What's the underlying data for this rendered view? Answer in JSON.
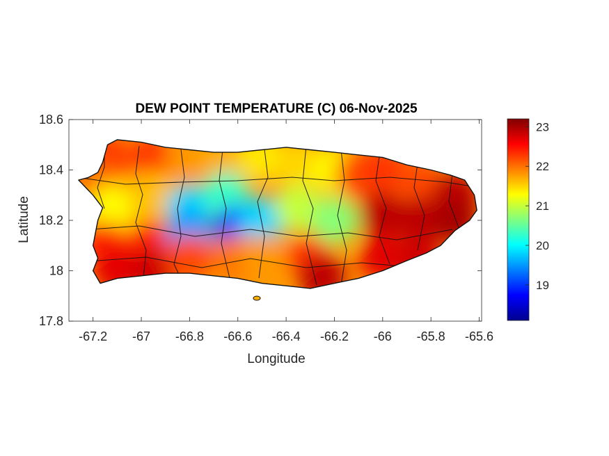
{
  "figure": {
    "title": "DEW POINT TEMPERATURE (C) 06-Nov-2025",
    "xlabel": "Longitude",
    "ylabel": "Latitude"
  },
  "axes": {
    "xlim": [
      -67.3,
      -65.59
    ],
    "ylim": [
      17.8,
      18.6
    ],
    "xticks": [
      -67.2,
      -67,
      -66.8,
      -66.6,
      -66.4,
      -66.2,
      -66,
      -65.8,
      -65.6
    ],
    "xtick_labels": [
      "-67.2",
      "-67",
      "-66.8",
      "-66.6",
      "-66.4",
      "-66.2",
      "-66",
      "-65.8",
      "-65.6"
    ],
    "yticks": [
      17.8,
      18,
      18.2,
      18.4,
      18.6
    ],
    "ytick_labels": [
      "17.8",
      "18",
      "18.2",
      "18.4",
      "18.6"
    ]
  },
  "colorbar": {
    "range": [
      18.1,
      23.2
    ],
    "ticks": [
      19,
      20,
      21,
      22,
      23
    ],
    "tick_labels": [
      "19",
      "20",
      "21",
      "22",
      "23"
    ],
    "colormap": "jet"
  },
  "chart_data": {
    "type": "heatmap",
    "title": "DEW POINT TEMPERATURE (C) 06-Nov-2025",
    "xlabel": "Longitude",
    "ylabel": "Latitude",
    "xlim": [
      -67.3,
      -65.59
    ],
    "ylim": [
      17.8,
      18.6
    ],
    "colorbar_range": [
      18.1,
      23.2
    ],
    "colormap": "jet",
    "grid": false,
    "region_outline": [
      [
        -67.22,
        18.37
      ],
      [
        -67.18,
        18.39
      ],
      [
        -67.16,
        18.43
      ],
      [
        -67.14,
        18.5
      ],
      [
        -67.1,
        18.52
      ],
      [
        -67.0,
        18.51
      ],
      [
        -66.9,
        18.49
      ],
      [
        -66.8,
        18.48
      ],
      [
        -66.7,
        18.47
      ],
      [
        -66.6,
        18.47
      ],
      [
        -66.5,
        18.48
      ],
      [
        -66.4,
        18.49
      ],
      [
        -66.3,
        18.48
      ],
      [
        -66.2,
        18.47
      ],
      [
        -66.1,
        18.46
      ],
      [
        -66.0,
        18.45
      ],
      [
        -65.9,
        18.42
      ],
      [
        -65.8,
        18.4
      ],
      [
        -65.72,
        18.38
      ],
      [
        -65.66,
        18.36
      ],
      [
        -65.62,
        18.3
      ],
      [
        -65.61,
        18.24
      ],
      [
        -65.64,
        18.2
      ],
      [
        -65.7,
        18.16
      ],
      [
        -65.76,
        18.1
      ],
      [
        -65.82,
        18.07
      ],
      [
        -65.9,
        18.04
      ],
      [
        -66.0,
        18.0
      ],
      [
        -66.1,
        17.97
      ],
      [
        -66.2,
        17.95
      ],
      [
        -66.3,
        17.93
      ],
      [
        -66.4,
        17.94
      ],
      [
        -66.5,
        17.95
      ],
      [
        -66.6,
        17.97
      ],
      [
        -66.7,
        17.98
      ],
      [
        -66.8,
        17.99
      ],
      [
        -66.9,
        17.99
      ],
      [
        -67.0,
        17.98
      ],
      [
        -67.1,
        17.97
      ],
      [
        -67.17,
        17.95
      ],
      [
        -67.2,
        18.0
      ],
      [
        -67.18,
        18.05
      ],
      [
        -67.2,
        18.1
      ],
      [
        -67.19,
        18.15
      ],
      [
        -67.18,
        18.2
      ],
      [
        -67.16,
        18.25
      ],
      [
        -67.2,
        18.3
      ],
      [
        -67.26,
        18.36
      ]
    ],
    "field_samples": [
      {
        "lon": -67.15,
        "lat": 18.45,
        "value": 22.3
      },
      {
        "lon": -67.2,
        "lat": 18.35,
        "value": 22.0
      },
      {
        "lon": -67.12,
        "lat": 18.25,
        "value": 21.3
      },
      {
        "lon": -67.15,
        "lat": 18.1,
        "value": 22.4
      },
      {
        "lon": -67.1,
        "lat": 18.0,
        "value": 22.7
      },
      {
        "lon": -66.95,
        "lat": 18.45,
        "value": 22.3
      },
      {
        "lon": -66.95,
        "lat": 18.3,
        "value": 21.6
      },
      {
        "lon": -66.95,
        "lat": 18.1,
        "value": 22.4
      },
      {
        "lon": -66.95,
        "lat": 18.0,
        "value": 22.8
      },
      {
        "lon": -66.8,
        "lat": 18.45,
        "value": 21.8
      },
      {
        "lon": -66.8,
        "lat": 18.25,
        "value": 19.8
      },
      {
        "lon": -66.8,
        "lat": 18.15,
        "value": 19.5
      },
      {
        "lon": -66.8,
        "lat": 18.05,
        "value": 22.2
      },
      {
        "lon": -66.65,
        "lat": 18.45,
        "value": 21.7
      },
      {
        "lon": -66.65,
        "lat": 18.3,
        "value": 20.3
      },
      {
        "lon": -66.6,
        "lat": 18.17,
        "value": 19.0
      },
      {
        "lon": -66.6,
        "lat": 18.05,
        "value": 22.0
      },
      {
        "lon": -66.5,
        "lat": 18.45,
        "value": 21.4
      },
      {
        "lon": -66.5,
        "lat": 18.2,
        "value": 19.8
      },
      {
        "lon": -66.5,
        "lat": 18.05,
        "value": 21.8
      },
      {
        "lon": -66.35,
        "lat": 18.42,
        "value": 21.5
      },
      {
        "lon": -66.35,
        "lat": 18.25,
        "value": 21.0
      },
      {
        "lon": -66.3,
        "lat": 18.05,
        "value": 22.3
      },
      {
        "lon": -66.25,
        "lat": 17.97,
        "value": 22.9
      },
      {
        "lon": -66.2,
        "lat": 18.4,
        "value": 21.3
      },
      {
        "lon": -66.2,
        "lat": 18.2,
        "value": 20.7
      },
      {
        "lon": -66.1,
        "lat": 18.38,
        "value": 22.2
      },
      {
        "lon": -66.0,
        "lat": 18.4,
        "value": 22.3
      },
      {
        "lon": -66.0,
        "lat": 18.22,
        "value": 22.9
      },
      {
        "lon": -66.0,
        "lat": 18.05,
        "value": 22.7
      },
      {
        "lon": -65.85,
        "lat": 18.35,
        "value": 22.2
      },
      {
        "lon": -65.85,
        "lat": 18.2,
        "value": 22.9
      },
      {
        "lon": -65.85,
        "lat": 18.05,
        "value": 22.8
      },
      {
        "lon": -65.7,
        "lat": 18.3,
        "value": 22.9
      },
      {
        "lon": -65.7,
        "lat": 18.2,
        "value": 23.0
      }
    ]
  }
}
